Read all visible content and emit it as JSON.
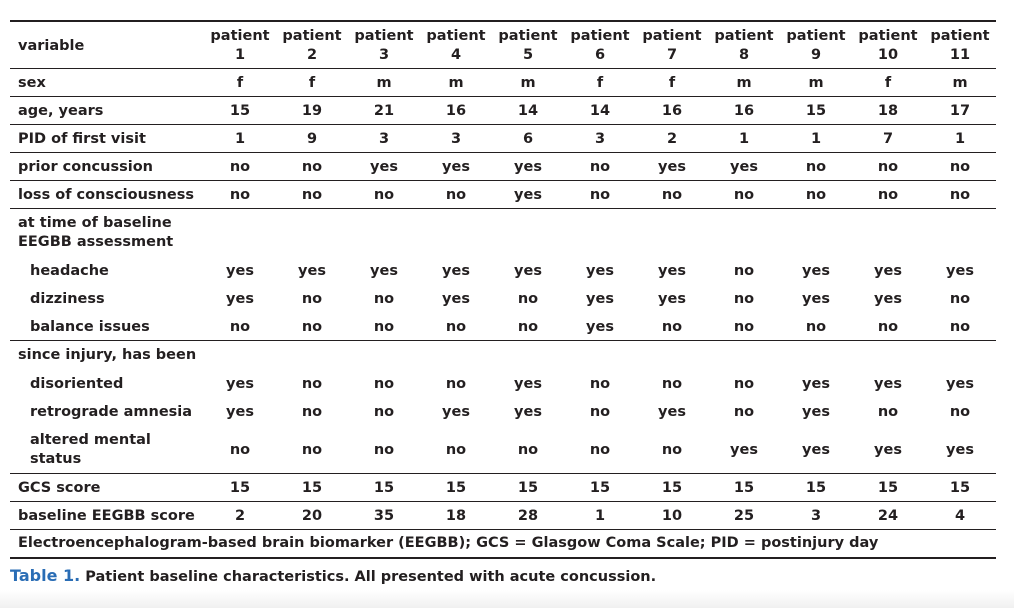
{
  "table": {
    "header": {
      "variable": "variable",
      "columns": [
        "patient\n1",
        "patient\n2",
        "patient\n3",
        "patient\n4",
        "patient\n5",
        "patient\n6",
        "patient\n7",
        "patient\n8",
        "patient\n9",
        "patient\n10",
        "patient\n11"
      ]
    },
    "rows": [
      {
        "label": "sex",
        "values": [
          "f",
          "f",
          "m",
          "m",
          "m",
          "f",
          "f",
          "m",
          "m",
          "f",
          "m"
        ]
      },
      {
        "label": "age, years",
        "values": [
          15,
          19,
          21,
          16,
          14,
          14,
          16,
          16,
          15,
          18,
          17
        ]
      },
      {
        "label": "PID of first visit",
        "values": [
          1,
          9,
          3,
          3,
          6,
          3,
          2,
          1,
          1,
          7,
          1
        ]
      },
      {
        "label": "prior concussion",
        "values": [
          "no",
          "no",
          "yes",
          "yes",
          "yes",
          "no",
          "yes",
          "yes",
          "no",
          "no",
          "no"
        ]
      },
      {
        "label": "loss of consciousness",
        "values": [
          "no",
          "no",
          "no",
          "no",
          "yes",
          "no",
          "no",
          "no",
          "no",
          "no",
          "no"
        ]
      },
      {
        "label": "at time of baseline\nEEGBB assessment",
        "items": [
          {
            "label": "headache",
            "values": [
              "yes",
              "yes",
              "yes",
              "yes",
              "yes",
              "yes",
              "yes",
              "no",
              "yes",
              "yes",
              "yes"
            ]
          },
          {
            "label": "dizziness",
            "values": [
              "yes",
              "no",
              "no",
              "yes",
              "no",
              "yes",
              "yes",
              "no",
              "yes",
              "yes",
              "no"
            ]
          },
          {
            "label": "balance issues",
            "values": [
              "no",
              "no",
              "no",
              "no",
              "no",
              "yes",
              "no",
              "no",
              "no",
              "no",
              "no"
            ]
          }
        ]
      },
      {
        "label": "since injury, has been",
        "items": [
          {
            "label": "disoriented",
            "values": [
              "yes",
              "no",
              "no",
              "no",
              "yes",
              "no",
              "no",
              "no",
              "yes",
              "yes",
              "yes"
            ]
          },
          {
            "label": "retrograde amnesia",
            "values": [
              "yes",
              "no",
              "no",
              "yes",
              "yes",
              "no",
              "yes",
              "no",
              "yes",
              "no",
              "no"
            ]
          },
          {
            "label": "altered mental\nstatus",
            "values": [
              "no",
              "no",
              "no",
              "no",
              "no",
              "no",
              "no",
              "yes",
              "yes",
              "yes",
              "yes"
            ]
          }
        ]
      },
      {
        "label": "GCS score",
        "values": [
          15,
          15,
          15,
          15,
          15,
          15,
          15,
          15,
          15,
          15,
          15
        ]
      },
      {
        "label": "baseline EEGBB score",
        "values": [
          2,
          20,
          35,
          18,
          28,
          1,
          10,
          25,
          3,
          24,
          4
        ]
      }
    ],
    "footnote": "Electroencephalogram-based brain biomarker (EEGBB); GCS = Glasgow Coma Scale; PID = postinjury day"
  },
  "caption": {
    "label": "Table 1.",
    "text": "Patient baseline characteristics. All presented with acute concussion."
  }
}
